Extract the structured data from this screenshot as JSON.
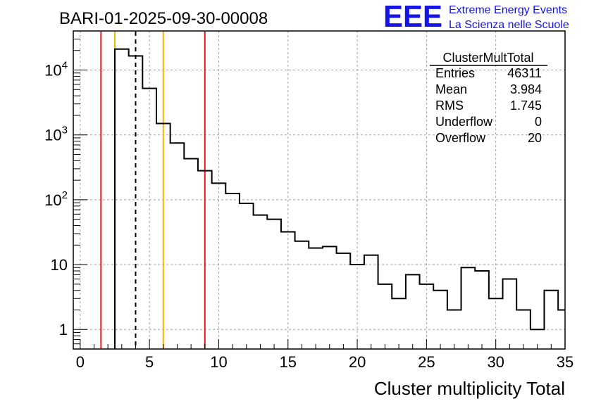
{
  "chart_data": {
    "type": "histogram",
    "title": "BARI-01-2025-09-30-00008",
    "xlabel": "Cluster multiplicity Total",
    "ylabel": "",
    "yscale": "log",
    "xlim": [
      -0.5,
      35
    ],
    "ylim": [
      0.5,
      40000
    ],
    "grid": true,
    "x_ticks": [
      "0",
      "5",
      "10",
      "15",
      "20",
      "25",
      "30",
      "35"
    ],
    "x_tick_values": [
      0,
      5,
      10,
      15,
      20,
      25,
      30,
      35
    ],
    "y_ticks": [
      {
        "base": "1",
        "exp": ""
      },
      {
        "base": "10",
        "exp": ""
      },
      {
        "base": "10",
        "exp": "2"
      },
      {
        "base": "10",
        "exp": "3"
      },
      {
        "base": "10",
        "exp": "4"
      }
    ],
    "y_tick_values": [
      1,
      10,
      100,
      1000,
      10000
    ],
    "bin_width": 1,
    "bin_low_edges": [
      2.5,
      3.5,
      4.5,
      5.5,
      6.5,
      7.5,
      8.5,
      9.5,
      10.5,
      11.5,
      12.5,
      13.5,
      14.5,
      15.5,
      16.5,
      17.5,
      18.5,
      19.5,
      20.5,
      21.5,
      22.5,
      23.5,
      24.5,
      25.5,
      26.5,
      27.5,
      28.5,
      29.5,
      30.5,
      31.5,
      32.5,
      33.5,
      34.5
    ],
    "counts": [
      21000,
      16500,
      5200,
      1500,
      750,
      430,
      280,
      180,
      125,
      88,
      58,
      50,
      32,
      23,
      18,
      19,
      15,
      10,
      14,
      5,
      3,
      7,
      5,
      4,
      2,
      9,
      8,
      3,
      6,
      2,
      1,
      4,
      2
    ],
    "markers": [
      {
        "name": "red-left",
        "x": 1.5,
        "color": "#e31a1c",
        "style": "solid"
      },
      {
        "name": "orange-left",
        "x": 2.5,
        "color": "#f5b800",
        "style": "solid"
      },
      {
        "name": "mean",
        "x": 4.0,
        "color": "#000000",
        "style": "dashed"
      },
      {
        "name": "orange-right",
        "x": 6.0,
        "color": "#f5b800",
        "style": "solid"
      },
      {
        "name": "red-right",
        "x": 9.0,
        "color": "#e31a1c",
        "style": "solid"
      }
    ],
    "stats": {
      "title": "ClusterMultTotal",
      "rows": [
        {
          "label": "Entries",
          "value": "46311"
        },
        {
          "label": "Mean",
          "value": "3.984"
        },
        {
          "label": "RMS",
          "value": "1.745"
        },
        {
          "label": "Underflow",
          "value": "0"
        },
        {
          "label": "Overflow",
          "value": "20"
        }
      ]
    }
  },
  "logo": {
    "mark": "EEE",
    "line1": "Extreme Energy Events",
    "line2": "La Scienza nelle Scuole",
    "color": "#1414e6"
  },
  "colors": {
    "line": "#000000"
  }
}
